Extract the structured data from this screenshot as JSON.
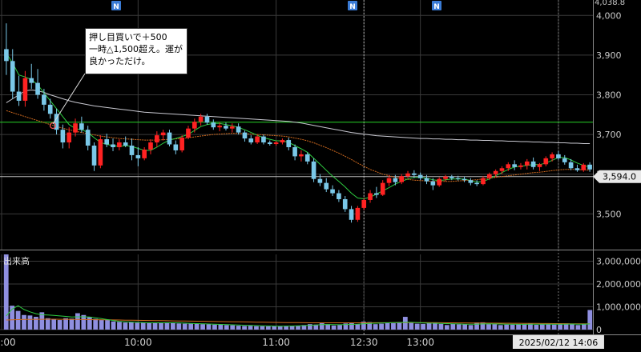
{
  "chart_data": [
    {
      "type": "candlestick",
      "panel": "price",
      "y_ticks": [
        "3,500",
        "3,600",
        "3,700",
        "3,800",
        "3,900",
        "4,000"
      ],
      "y_tick_values": [
        3500,
        3600,
        3700,
        3800,
        3900,
        4000
      ],
      "ylim": [
        3410,
        4038.8
      ],
      "top_partial_label": "4,038.8",
      "current_price_label": "3,594.0",
      "current_price": 3594.0,
      "horizontal_line": 3731,
      "colors": {
        "up": "#ff2222",
        "down": "#7ac8e8",
        "ma_short": "#2ecc40",
        "ma_mid": "#d06a1e",
        "ma_long": "#c8c8d0",
        "hline": "#27d327"
      },
      "candles": [
        [
          3915,
          3980,
          3850,
          3885
        ],
        [
          3885,
          3915,
          3790,
          3808
        ],
        [
          3808,
          3848,
          3772,
          3785
        ],
        [
          3785,
          3860,
          3770,
          3842
        ],
        [
          3842,
          3878,
          3815,
          3830
        ],
        [
          3830,
          3865,
          3790,
          3800
        ],
        [
          3800,
          3815,
          3760,
          3775
        ],
        [
          3775,
          3790,
          3740,
          3752
        ],
        [
          3752,
          3765,
          3700,
          3712
        ],
        [
          3712,
          3725,
          3665,
          3680
        ],
        [
          3680,
          3718,
          3665,
          3705
        ],
        [
          3705,
          3740,
          3695,
          3728
        ],
        [
          3728,
          3745,
          3705,
          3712
        ],
        [
          3712,
          3722,
          3660,
          3672
        ],
        [
          3672,
          3680,
          3608,
          3622
        ],
        [
          3622,
          3698,
          3615,
          3688
        ],
        [
          3688,
          3702,
          3668,
          3675
        ],
        [
          3675,
          3690,
          3658,
          3668
        ],
        [
          3668,
          3688,
          3660,
          3680
        ],
        [
          3680,
          3695,
          3668,
          3672
        ],
        [
          3672,
          3690,
          3635,
          3648
        ],
        [
          3648,
          3668,
          3620,
          3640
        ],
        [
          3640,
          3668,
          3635,
          3662
        ],
        [
          3662,
          3688,
          3650,
          3680
        ],
        [
          3680,
          3708,
          3668,
          3698
        ],
        [
          3698,
          3712,
          3685,
          3705
        ],
        [
          3705,
          3712,
          3670,
          3675
        ],
        [
          3675,
          3685,
          3650,
          3660
        ],
        [
          3660,
          3698,
          3655,
          3692
        ],
        [
          3692,
          3722,
          3688,
          3715
        ],
        [
          3715,
          3740,
          3705,
          3732
        ],
        [
          3732,
          3752,
          3722,
          3745
        ],
        [
          3745,
          3752,
          3725,
          3730
        ],
        [
          3730,
          3738,
          3712,
          3718
        ],
        [
          3718,
          3730,
          3708,
          3722
        ],
        [
          3722,
          3730,
          3710,
          3715
        ],
        [
          3715,
          3728,
          3705,
          3720
        ],
        [
          3720,
          3728,
          3700,
          3705
        ],
        [
          3705,
          3710,
          3682,
          3690
        ],
        [
          3690,
          3698,
          3675,
          3680
        ],
        [
          3680,
          3700,
          3676,
          3695
        ],
        [
          3695,
          3700,
          3675,
          3680
        ],
        [
          3680,
          3685,
          3672,
          3676
        ],
        [
          3676,
          3684,
          3672,
          3680
        ],
        [
          3680,
          3690,
          3675,
          3686
        ],
        [
          3686,
          3692,
          3660,
          3668
        ],
        [
          3668,
          3675,
          3635,
          3645
        ],
        [
          3645,
          3660,
          3632,
          3650
        ],
        [
          3650,
          3655,
          3625,
          3632
        ],
        [
          3632,
          3640,
          3580,
          3588
        ],
        [
          3588,
          3600,
          3570,
          3578
        ],
        [
          3578,
          3590,
          3555,
          3562
        ],
        [
          3562,
          3572,
          3545,
          3552
        ],
        [
          3552,
          3560,
          3530,
          3537
        ],
        [
          3537,
          3545,
          3505,
          3512
        ],
        [
          3512,
          3520,
          3478,
          3485
        ],
        [
          3485,
          3520,
          3480,
          3515
        ],
        [
          3515,
          3540,
          3510,
          3535
        ],
        [
          3535,
          3560,
          3528,
          3552
        ],
        [
          3552,
          3568,
          3540,
          3548
        ],
        [
          3548,
          3585,
          3545,
          3578
        ],
        [
          3578,
          3598,
          3570,
          3590
        ],
        [
          3590,
          3598,
          3572,
          3580
        ],
        [
          3580,
          3600,
          3575,
          3595
        ],
        [
          3595,
          3608,
          3590,
          3602
        ],
        [
          3602,
          3610,
          3590,
          3598
        ],
        [
          3598,
          3604,
          3585,
          3590
        ],
        [
          3590,
          3598,
          3575,
          3582
        ],
        [
          3582,
          3590,
          3560,
          3572
        ],
        [
          3572,
          3592,
          3568,
          3588
        ],
        [
          3588,
          3598,
          3582,
          3594
        ],
        [
          3594,
          3598,
          3585,
          3590
        ],
        [
          3590,
          3596,
          3584,
          3588
        ],
        [
          3588,
          3594,
          3580,
          3585
        ],
        [
          3585,
          3590,
          3572,
          3578
        ],
        [
          3578,
          3585,
          3570,
          3575
        ],
        [
          3575,
          3595,
          3572,
          3590
        ],
        [
          3590,
          3604,
          3585,
          3600
        ],
        [
          3600,
          3612,
          3592,
          3608
        ],
        [
          3608,
          3620,
          3600,
          3615
        ],
        [
          3615,
          3630,
          3608,
          3625
        ],
        [
          3625,
          3635,
          3610,
          3618
        ],
        [
          3618,
          3628,
          3612,
          3622
        ],
        [
          3622,
          3638,
          3612,
          3632
        ],
        [
          3632,
          3642,
          3612,
          3618
        ],
        [
          3618,
          3628,
          3608,
          3625
        ],
        [
          3625,
          3645,
          3620,
          3640
        ],
        [
          3640,
          3655,
          3632,
          3650
        ],
        [
          3650,
          3658,
          3636,
          3640
        ],
        [
          3640,
          3648,
          3624,
          3630
        ],
        [
          3630,
          3638,
          3610,
          3615
        ],
        [
          3615,
          3624,
          3606,
          3610
        ],
        [
          3610,
          3628,
          3606,
          3624
        ],
        [
          3624,
          3630,
          3606,
          3612
        ]
      ],
      "ma_short": [
        3905,
        3880,
        3850,
        3845,
        3838,
        3825,
        3805,
        3785,
        3765,
        3745,
        3725,
        3715,
        3712,
        3705,
        3692,
        3680,
        3675,
        3672,
        3670,
        3672,
        3670,
        3665,
        3660,
        3660,
        3668,
        3678,
        3686,
        3690,
        3695,
        3700,
        3710,
        3720,
        3725,
        3728,
        3728,
        3725,
        3722,
        3718,
        3712,
        3705,
        3698,
        3692,
        3688,
        3684,
        3684,
        3680,
        3672,
        3664,
        3655,
        3640,
        3625,
        3610,
        3595,
        3582,
        3568,
        3552,
        3540,
        3538,
        3542,
        3550,
        3558,
        3566,
        3575,
        3582,
        3588,
        3592,
        3592,
        3590,
        3586,
        3584,
        3586,
        3588,
        3588,
        3588,
        3584,
        3580,
        3582,
        3588,
        3596,
        3604,
        3612,
        3618,
        3620,
        3622,
        3624,
        3624,
        3628,
        3635,
        3642,
        3642,
        3636,
        3628,
        3622,
        3618
      ],
      "ma_mid": [
        3760,
        3755,
        3750,
        3745,
        3740,
        3735,
        3730,
        3725,
        3720,
        3716,
        3712,
        3708,
        3705,
        3702,
        3699,
        3696,
        3694,
        3692,
        3690,
        3689,
        3688,
        3687,
        3686,
        3686,
        3686,
        3687,
        3688,
        3689,
        3690,
        3692,
        3694,
        3696,
        3698,
        3700,
        3701,
        3702,
        3703,
        3703,
        3702,
        3701,
        3700,
        3699,
        3698,
        3697,
        3696,
        3694,
        3691,
        3688,
        3684,
        3679,
        3673,
        3667,
        3660,
        3653,
        3645,
        3637,
        3628,
        3620,
        3612,
        3606,
        3600,
        3596,
        3592,
        3589,
        3587,
        3585,
        3584,
        3583,
        3582,
        3582,
        3582,
        3582,
        3583,
        3584,
        3585,
        3586,
        3588,
        3590,
        3592,
        3594,
        3596,
        3598,
        3600,
        3602,
        3604,
        3605,
        3607,
        3609,
        3611,
        3612,
        3612,
        3612,
        3611,
        3610
      ],
      "ma_long": [
        3780,
        3790,
        3800,
        3810,
        3812,
        3810,
        3806,
        3800,
        3795,
        3790,
        3785,
        3781,
        3778,
        3775,
        3772,
        3770,
        3768,
        3766,
        3764,
        3762,
        3760,
        3758,
        3756,
        3755,
        3754,
        3753,
        3752,
        3751,
        3750,
        3749,
        3748,
        3747,
        3746,
        3745,
        3744,
        3743,
        3742,
        3741,
        3740,
        3739,
        3738,
        3737,
        3736,
        3735,
        3734,
        3733,
        3731,
        3729,
        3726,
        3723,
        3720,
        3717,
        3714,
        3711,
        3708,
        3705,
        3703,
        3701,
        3699,
        3697,
        3696,
        3695,
        3694,
        3693,
        3692,
        3691,
        3690,
        3690,
        3689,
        3689,
        3688,
        3688,
        3687,
        3687,
        3686,
        3686,
        3685,
        3685,
        3684,
        3684,
        3683,
        3683,
        3682,
        3682,
        3681,
        3681,
        3680,
        3680,
        3679,
        3679,
        3678,
        3678,
        3677,
        3677
      ]
    },
    {
      "type": "bar",
      "panel": "volume",
      "title": "出来高",
      "y_ticks": [
        "0",
        "1,000,000",
        "2,000,000",
        "3,000,000"
      ],
      "y_tick_values": [
        0,
        1000000,
        2000000,
        3000000
      ],
      "ylim": [
        0,
        3300000
      ],
      "bar_color": "#8f8fe0",
      "values": [
        3300000,
        1050000,
        820000,
        640000,
        620000,
        560000,
        760000,
        500000,
        460000,
        420000,
        500000,
        480000,
        720000,
        640000,
        560000,
        470000,
        420000,
        420000,
        360000,
        340000,
        310000,
        320000,
        300000,
        310000,
        290000,
        300000,
        300000,
        320000,
        300000,
        270000,
        260000,
        260000,
        250000,
        240000,
        230000,
        220000,
        230000,
        200000,
        190000,
        170000,
        160000,
        170000,
        150000,
        150000,
        140000,
        140000,
        150000,
        160000,
        170000,
        170000,
        200000,
        240000,
        220000,
        280000,
        240000,
        180000,
        200000,
        270000,
        300000,
        240000,
        350000,
        330000,
        240000,
        260000,
        300000,
        280000,
        330000,
        560000,
        320000,
        260000,
        250000,
        300000,
        320000,
        250000,
        200000,
        260000,
        230000,
        230000,
        200000,
        310000,
        320000,
        240000,
        240000,
        200000,
        220000,
        220000,
        240000,
        250000,
        260000,
        210000,
        240000,
        230000,
        220000,
        230000,
        270000,
        260000,
        200000,
        240000,
        860000
      ],
      "ma_short": [
        600000,
        900000,
        1050000,
        880000,
        780000,
        700000,
        650000,
        640000,
        620000,
        600000,
        580000,
        550000,
        560000,
        560000,
        550000,
        520000,
        480000,
        440000,
        400000,
        360000,
        340000,
        330000,
        320000,
        310000,
        300000,
        300000,
        300000,
        300000,
        300000,
        295000,
        285000,
        275000,
        265000,
        255000,
        245000,
        235000,
        228000,
        220000,
        210000,
        200000,
        190000,
        182000,
        175000,
        168000,
        160000,
        155000,
        152000,
        154000,
        158000,
        165000,
        175000,
        190000,
        205000,
        220000,
        225000,
        220000,
        215000,
        220000,
        230000,
        240000,
        255000,
        270000,
        280000,
        290000,
        300000,
        305000,
        310000,
        320000,
        320000,
        310000,
        295000,
        285000,
        280000,
        275000,
        265000,
        255000,
        248000,
        240000,
        235000,
        240000,
        250000,
        255000,
        250000,
        245000,
        240000,
        235000,
        232000,
        233000,
        238000,
        240000,
        240000,
        238000,
        236000,
        236000,
        240000,
        245000,
        240000,
        238000,
        250000
      ],
      "ma_long": [
        420000,
        430000,
        440000,
        445000,
        450000,
        452000,
        454000,
        455000,
        455000,
        454000,
        453000,
        450000,
        447000,
        444000,
        440000,
        436000,
        432000,
        428000,
        424000,
        420000,
        416000,
        412000,
        408000,
        404000,
        400000,
        396000,
        392000,
        388000,
        384000,
        380000,
        376000,
        372000,
        368000,
        364000,
        360000,
        356000,
        352000,
        348000,
        344000,
        340000,
        336000,
        332000,
        328000,
        324000,
        320000,
        316000,
        313000,
        310000,
        307000,
        304000,
        302000,
        300000,
        299000,
        298000,
        298000,
        297000,
        297000,
        297000,
        298000,
        298000,
        299000,
        300000,
        301000,
        302000,
        303000,
        304000,
        305000,
        306000,
        306000,
        306000,
        305000,
        304000,
        303000,
        302000,
        300000,
        298000,
        296000,
        294000,
        292000,
        290000,
        288000,
        286000,
        284000,
        282000,
        280000,
        278000,
        276000,
        274000,
        272000,
        270000,
        268000,
        266000,
        264000,
        262000,
        260000,
        258000,
        256000,
        254000,
        253000
      ]
    }
  ],
  "x_axis": {
    "labels": [
      ":00",
      "10:00",
      "11:00",
      "12:30",
      "13:00"
    ],
    "cursor_label": "2025/02/12 14:06"
  },
  "annotation": {
    "lines": [
      "押し目買いで＋500",
      "一時△1,500超え。運が",
      "良かっただけ。"
    ]
  },
  "news_markers": [
    "N",
    "N",
    "N"
  ]
}
